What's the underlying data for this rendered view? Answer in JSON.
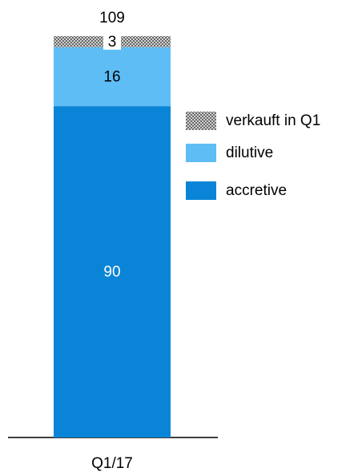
{
  "chart_data": {
    "type": "stacked_bar",
    "categories": [
      "Q1/17"
    ],
    "series": [
      {
        "name": "accretive",
        "color": "#0a84d6",
        "values": [
          90
        ]
      },
      {
        "name": "dilutive",
        "color": "#5ebdf5",
        "values": [
          16
        ]
      },
      {
        "name": "verkauft in Q1",
        "color": "checker",
        "values": [
          3
        ]
      }
    ],
    "totals": [
      109
    ]
  }
}
